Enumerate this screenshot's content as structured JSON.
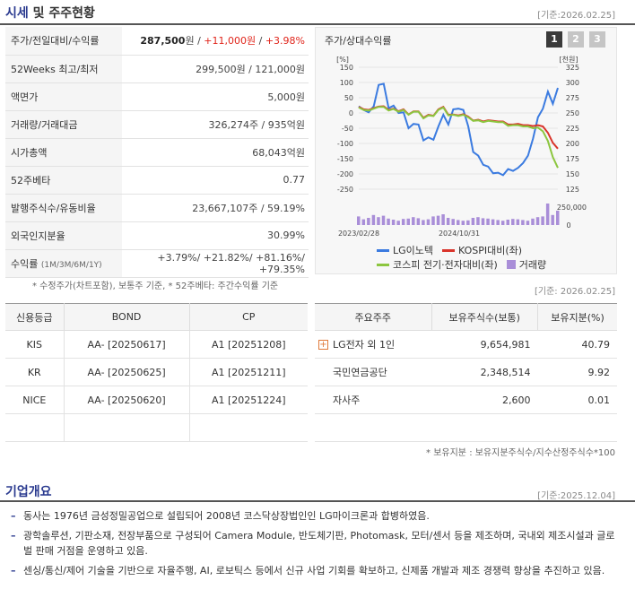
{
  "header": {
    "title_main": "시세",
    "title_rest": " 및 주주현황",
    "asof": "[기준:2026.02.25]"
  },
  "price_rows": [
    {
      "label": "주가/전일대비/수익률",
      "value_bold": "287,500",
      "unit": "원",
      "sep": " / ",
      "change": "+11,000원",
      "sep2": " / ",
      "rate": "+3.98%"
    },
    {
      "label": "52Weeks 최고/최저",
      "value": "299,500원 / 121,000원"
    },
    {
      "label": "액면가",
      "value": "5,000원"
    },
    {
      "label": "거래량/거래대금",
      "value": "326,274주 / 935억원"
    },
    {
      "label": "시가총액",
      "value": "68,043억원"
    },
    {
      "label": "52주베타",
      "value": "0.77"
    },
    {
      "label": "발행주식수/유동비율",
      "value": "23,667,107주 / 59.19%"
    },
    {
      "label": "외국인지분율",
      "value": "30.99%"
    },
    {
      "label": "수익률",
      "label_small": "(1M/3M/6M/1Y)",
      "value": "+3.79%/ +21.82%/ +81.16%/ +79.35%"
    }
  ],
  "footnote": "* 수정주가(차트포함), 보통주 기준, * 52주베타: 주간수익률 기준",
  "chart_panel": {
    "title": "주가/상대수익률",
    "range_buttons": [
      "1",
      "2",
      "3"
    ],
    "active_range": "1",
    "legend": [
      {
        "name": "LG이노텍",
        "color": "#3b7be0",
        "type": "line"
      },
      {
        "name": "KOSPI대비(좌)",
        "color": "#d9342b",
        "type": "line"
      },
      {
        "name": "코스피 전기·전자대비(좌)",
        "color": "#8cc63f",
        "type": "line"
      },
      {
        "name": "거래량",
        "color": "#a98ed8",
        "type": "box"
      }
    ]
  },
  "chart_data": {
    "type": "line",
    "left_axis_unit": "[%]",
    "right_axis_unit": "[천원]",
    "left_ticks": [
      "150",
      "100",
      "50",
      "0",
      "-50",
      "-100",
      "-150",
      "-200",
      "-250"
    ],
    "right_ticks": [
      "325",
      "300",
      "275",
      "250",
      "225",
      "200",
      "175",
      "150",
      "125"
    ],
    "volume_tick": "250,000",
    "volume_zero": "0",
    "x_labels": [
      "2023/02/28",
      "2024/10/31"
    ],
    "ylim_left": [
      -250,
      150
    ],
    "ylim_right": [
      125,
      325
    ],
    "series": [
      {
        "name": "LG이노텍",
        "axis": "right",
        "color": "#3b7be0",
        "values": [
          261,
          255,
          251,
          261,
          296,
          298,
          258,
          262,
          250,
          251,
          225,
          232,
          231,
          205,
          210,
          206,
          228,
          247,
          231,
          256,
          257,
          255,
          228,
          186,
          180,
          165,
          162,
          151,
          152,
          148,
          158,
          155,
          160,
          168,
          180,
          208,
          243,
          257,
          285,
          265,
          291
        ]
      },
      {
        "name": "KOSPI대비(좌)",
        "axis": "left",
        "color": "#d9342b",
        "values": [
          20,
          12,
          10,
          16,
          21,
          22,
          10,
          14,
          6,
          12,
          -5,
          5,
          5,
          -16,
          -6,
          -9,
          12,
          20,
          -6,
          -5,
          -8,
          -4,
          -12,
          -25,
          -22,
          -28,
          -24,
          -26,
          -28,
          -28,
          -38,
          -38,
          -36,
          -40,
          -40,
          -43,
          -40,
          -44,
          -65,
          -98,
          -117
        ]
      },
      {
        "name": "코스피 전기·전자대비(좌)",
        "axis": "left",
        "color": "#8cc63f",
        "values": [
          18,
          10,
          8,
          14,
          20,
          20,
          8,
          13,
          4,
          10,
          -6,
          4,
          4,
          -18,
          -8,
          -10,
          10,
          18,
          -8,
          -6,
          -10,
          -6,
          -14,
          -26,
          -24,
          -30,
          -26,
          -28,
          -30,
          -30,
          -42,
          -40,
          -40,
          -44,
          -44,
          -50,
          -48,
          -60,
          -92,
          -145,
          -180
        ]
      },
      {
        "name": "거래량",
        "axis": "volume",
        "color": "#a98ed8",
        "values": [
          120000,
          80000,
          100000,
          140000,
          110000,
          130000,
          90000,
          75000,
          60000,
          85000,
          90000,
          110000,
          95000,
          70000,
          80000,
          120000,
          130000,
          150000,
          100000,
          85000,
          70000,
          60000,
          65000,
          100000,
          110000,
          95000,
          90000,
          80000,
          70000,
          60000,
          75000,
          85000,
          80000,
          70000,
          60000,
          90000,
          110000,
          120000,
          300000,
          140000,
          200000
        ]
      }
    ]
  },
  "asof2": "[기준: 2026.02.25]",
  "credit": {
    "headers": [
      "신용등급",
      "BOND",
      "CP"
    ],
    "rows": [
      [
        "KIS",
        "AA-  [20250617]",
        "A1  [20251208]"
      ],
      [
        "KR",
        "AA-  [20250625]",
        "A1  [20251211]"
      ],
      [
        "NICE",
        "AA-  [20250620]",
        "A1  [20251224]"
      ],
      [
        "",
        "",
        ""
      ]
    ]
  },
  "holders": {
    "headers": [
      "주요주주",
      "보유주식수(보통)",
      "보유지분(%)"
    ],
    "rows": [
      {
        "name": "LG전자 외 1인",
        "shares": "9,654,981",
        "pct": "40.79",
        "expand": true
      },
      {
        "name": "국민연금공단",
        "shares": "2,348,514",
        "pct": "9.92",
        "expand": false
      },
      {
        "name": "자사주",
        "shares": "2,600",
        "pct": "0.01",
        "expand": false
      },
      {
        "name": "",
        "shares": "",
        "pct": "",
        "expand": false
      }
    ],
    "footnote": "* 보유지분 : 보유지분주식수/지수산정주식수*100"
  },
  "overview": {
    "title": "기업개요",
    "asof": "[기준:2025.12.04]",
    "items": [
      "동사는 1976년 금성정밀공업으로 설립되어 2008년 코스닥상장법인인 LG마이크론과 합병하였음.",
      "광학솔루션, 기판소재, 전장부품으로 구성되어 Camera Module, 반도체기판, Photomask, 모터/센서 등을 제조하며, 국내외 제조시설과 글로벌 판매 거점을 운영하고 있음.",
      "센싱/통신/제어 기술을 기반으로 자율주행, AI, 로보틱스 등에서 신규 사업 기회를 확보하고, 신제품 개발과 제조 경쟁력 향상을 추진하고 있음."
    ]
  }
}
